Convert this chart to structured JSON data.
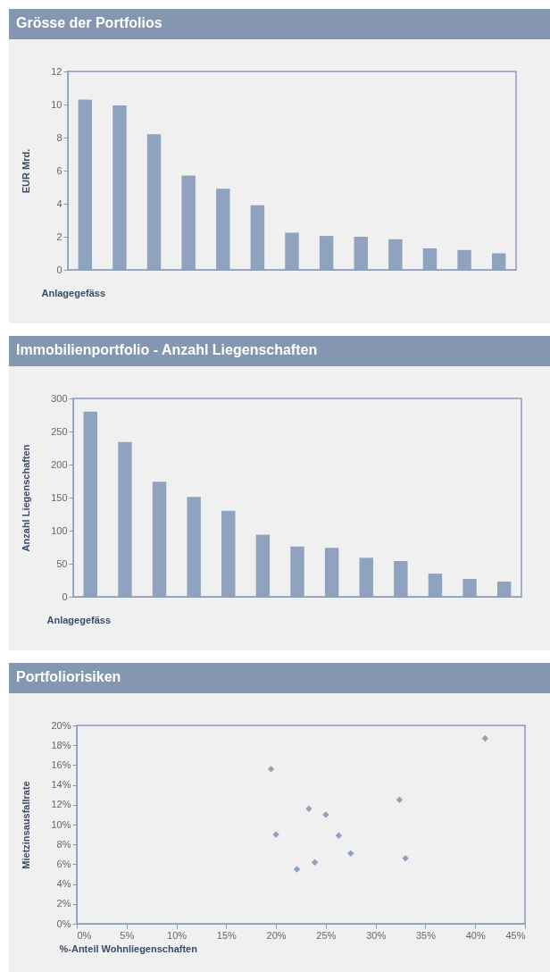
{
  "chart_data": [
    {
      "type": "bar",
      "title": "Grösse der Portfolios",
      "xlabel": "Anlagegefäss",
      "ylabel": "EUR Mrd.",
      "categories": [
        null,
        null,
        null,
        null,
        null,
        null,
        null,
        null,
        null,
        null,
        null,
        null,
        null
      ],
      "values": [
        10.3,
        9.95,
        8.2,
        5.7,
        4.9,
        3.9,
        2.25,
        2.05,
        2.0,
        1.85,
        1.3,
        1.2,
        1.0
      ],
      "color": "#8fa3bf",
      "ylim": [
        0,
        12
      ],
      "yticks": [
        0,
        2,
        4,
        6,
        8,
        10,
        12
      ],
      "tick_labels": "y",
      "grid": false
    },
    {
      "type": "bar",
      "title": "Immobilienportfolio - Anzahl Liegenschaften",
      "xlabel": "Anlagegefäss",
      "ylabel": "Anzahl Liegenschaften",
      "categories": [
        null,
        null,
        null,
        null,
        null,
        null,
        null,
        null,
        null,
        null,
        null,
        null,
        null
      ],
      "values": [
        280,
        234,
        174,
        151,
        130,
        94,
        76,
        74,
        59,
        54,
        35,
        27,
        23
      ],
      "color": "#8fa3bf",
      "ylim": [
        0,
        300
      ],
      "yticks": [
        0,
        50,
        100,
        150,
        200,
        250,
        300
      ],
      "tick_labels": "y",
      "grid": false
    },
    {
      "type": "scatter",
      "title": "Portfoliorisiken",
      "xlabel": "%-Anteil Wohnliegenschaften",
      "ylabel": "Mietzinsausfallrate",
      "x": [
        19.5,
        20.0,
        22.1,
        23.3,
        23.9,
        25.0,
        26.3,
        27.5,
        32.4,
        33.0,
        41.0
      ],
      "values": [
        15.6,
        9.0,
        5.5,
        11.6,
        6.2,
        11.0,
        8.9,
        7.1,
        12.5,
        6.6,
        18.7
      ],
      "color": "#8fa3bf",
      "marker": "diamond",
      "xlim": [
        0,
        45
      ],
      "xticks": [
        {
          "value": 0,
          "label": "0%"
        },
        {
          "value": 5,
          "label": "5%"
        },
        {
          "value": 10,
          "label": "10%"
        },
        {
          "value": 15,
          "label": "15%"
        },
        {
          "value": 20,
          "label": "20%"
        },
        {
          "value": 25,
          "label": "25%"
        },
        {
          "value": 30,
          "label": "30%"
        },
        {
          "value": 35,
          "label": "35%"
        },
        {
          "value": 40,
          "label": "40%"
        },
        {
          "value": 45,
          "label": "45%"
        }
      ],
      "ylim": [
        0,
        20
      ],
      "yticks": [
        {
          "value": 0,
          "label": "0%"
        },
        {
          "value": 2,
          "label": "2%"
        },
        {
          "value": 4,
          "label": "4%"
        },
        {
          "value": 6,
          "label": "6%"
        },
        {
          "value": 8,
          "label": "8%"
        },
        {
          "value": 10,
          "label": "10%"
        },
        {
          "value": 12,
          "label": "12%"
        },
        {
          "value": 14,
          "label": "14%"
        },
        {
          "value": 16,
          "label": "16%"
        },
        {
          "value": 18,
          "label": "18%"
        },
        {
          "value": 20,
          "label": "20%"
        }
      ],
      "grid": false
    }
  ]
}
